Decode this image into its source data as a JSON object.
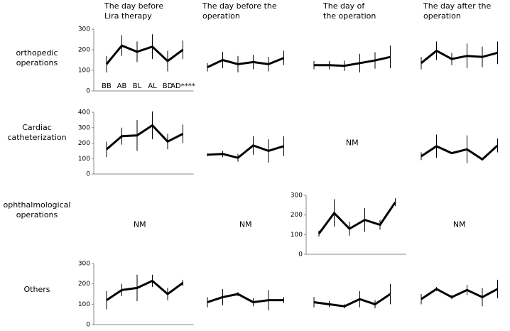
{
  "column_titles": [
    [
      "The day before",
      "Lira therapy"
    ],
    [
      "The day before the",
      "operation"
    ],
    [
      "The day of",
      "the operation"
    ],
    [
      "The day after the",
      "operation"
    ]
  ],
  "row_labels": [
    [
      "orthopedic",
      "operations"
    ],
    [
      "Cardiac",
      "catheterization"
    ],
    [
      "ophthalmological",
      "operations"
    ],
    [
      "Others"
    ]
  ],
  "chart_data": [
    {
      "type": "line",
      "categories": [
        "BB",
        "AB",
        "BL",
        "AL",
        "BD",
        "AD****"
      ],
      "values": [
        130,
        220,
        190,
        215,
        145,
        200
      ],
      "errors": [
        40,
        50,
        50,
        60,
        50,
        45
      ],
      "color": "#000000",
      "ylim": [
        0,
        300
      ],
      "yticks": [
        0,
        100,
        200,
        300
      ]
    },
    {
      "type": "line",
      "categories": [
        null,
        null,
        null,
        null,
        null,
        null
      ],
      "values": [
        115,
        150,
        130,
        140,
        130,
        160
      ],
      "errors": [
        20,
        40,
        40,
        35,
        35,
        35
      ],
      "color": "#000000",
      "ylim": [
        0,
        300
      ]
    },
    {
      "type": "line",
      "categories": [
        null,
        null,
        null,
        null,
        null,
        null
      ],
      "values": [
        125,
        125,
        122,
        135,
        148,
        165
      ],
      "errors": [
        20,
        20,
        25,
        45,
        40,
        55
      ],
      "color": "#000000",
      "ylim": [
        0,
        300
      ]
    },
    {
      "type": "line",
      "categories": [
        null,
        null,
        null,
        null,
        null,
        null
      ],
      "values": [
        135,
        195,
        155,
        170,
        165,
        185
      ],
      "errors": [
        30,
        45,
        30,
        60,
        50,
        55
      ],
      "color": "#000000",
      "ylim": [
        0,
        300
      ]
    },
    {
      "type": "line",
      "categories": [
        null,
        null,
        null,
        null,
        null,
        null
      ],
      "values": [
        160,
        245,
        250,
        315,
        210,
        260
      ],
      "errors": [
        50,
        55,
        100,
        90,
        50,
        60
      ],
      "color": "#000000",
      "ylim": [
        0,
        400
      ],
      "yticks": [
        0,
        100,
        200,
        300,
        400
      ]
    },
    {
      "type": "line",
      "categories": [
        null,
        null,
        null,
        null,
        null,
        null
      ],
      "values": [
        125,
        130,
        105,
        185,
        150,
        180
      ],
      "errors": [
        10,
        20,
        25,
        60,
        75,
        65
      ],
      "color": "#000000",
      "ylim": [
        0,
        400
      ]
    },
    {
      "type": "text",
      "text": "NM"
    },
    {
      "type": "line",
      "categories": [
        null,
        null,
        null,
        null,
        null,
        null
      ],
      "values": [
        115,
        180,
        135,
        160,
        95,
        185
      ],
      "errors": [
        25,
        75,
        5,
        90,
        5,
        45
      ],
      "color": "#000000",
      "ylim": [
        0,
        400
      ]
    },
    {
      "type": "text",
      "text": "NM"
    },
    {
      "type": "text",
      "text": "NM"
    },
    {
      "type": "line",
      "categories": [
        null,
        null,
        null,
        null,
        null,
        null
      ],
      "values": [
        105,
        210,
        130,
        175,
        150,
        265
      ],
      "errors": [
        15,
        70,
        35,
        60,
        25,
        20
      ],
      "color": "#000000",
      "ylim": [
        0,
        300
      ],
      "yticks": [
        0,
        100,
        200,
        300
      ]
    },
    {
      "type": "text",
      "text": "NM"
    },
    {
      "type": "line",
      "categories": [
        null,
        null,
        null,
        null,
        null,
        null
      ],
      "values": [
        120,
        170,
        180,
        215,
        150,
        205
      ],
      "errors": [
        45,
        30,
        65,
        30,
        30,
        15
      ],
      "color": "#000000",
      "ylim": [
        0,
        300
      ],
      "yticks": [
        0,
        100,
        200,
        300
      ]
    },
    {
      "type": "line",
      "categories": [
        null,
        null,
        null,
        null,
        null,
        null
      ],
      "values": [
        110,
        135,
        150,
        110,
        120,
        120
      ],
      "errors": [
        25,
        40,
        10,
        20,
        50,
        15
      ],
      "color": "#000000",
      "ylim": [
        0,
        300
      ]
    },
    {
      "type": "line",
      "categories": [
        null,
        null,
        null,
        null,
        null,
        null
      ],
      "values": [
        110,
        100,
        90,
        125,
        100,
        150
      ],
      "errors": [
        25,
        15,
        10,
        40,
        20,
        50
      ],
      "color": "#000000",
      "ylim": [
        0,
        300
      ]
    },
    {
      "type": "line",
      "categories": [
        null,
        null,
        null,
        null,
        null,
        null
      ],
      "values": [
        125,
        175,
        135,
        170,
        135,
        175
      ],
      "errors": [
        25,
        10,
        10,
        25,
        45,
        45
      ],
      "color": "#000000",
      "ylim": [
        0,
        300
      ]
    }
  ]
}
